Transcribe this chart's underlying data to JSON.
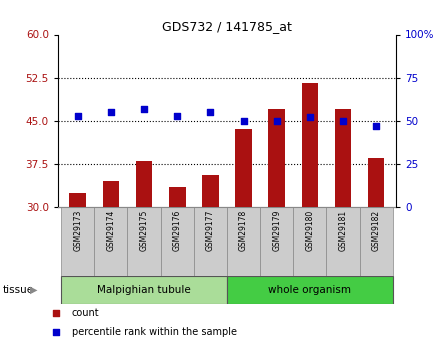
{
  "title": "GDS732 / 141785_at",
  "samples": [
    "GSM29173",
    "GSM29174",
    "GSM29175",
    "GSM29176",
    "GSM29177",
    "GSM29178",
    "GSM29179",
    "GSM29180",
    "GSM29181",
    "GSM29182"
  ],
  "count_values": [
    32.5,
    34.5,
    38.0,
    33.5,
    35.5,
    43.5,
    47.0,
    51.5,
    47.0,
    38.5
  ],
  "percentile_values": [
    53,
    55,
    57,
    53,
    55,
    50,
    50,
    52,
    50,
    47
  ],
  "bar_color": "#aa1111",
  "dot_color": "#0000cc",
  "bar_baseline": 30,
  "ylim_left": [
    30,
    60
  ],
  "ylim_right": [
    0,
    100
  ],
  "yticks_left": [
    30,
    37.5,
    45,
    52.5,
    60
  ],
  "yticks_right": [
    0,
    25,
    50,
    75,
    100
  ],
  "grid_lines": [
    37.5,
    45,
    52.5
  ],
  "tissue_groups": [
    {
      "label": "Malpighian tubule",
      "start": 0,
      "end": 5,
      "color": "#aadd99"
    },
    {
      "label": "whole organism",
      "start": 5,
      "end": 10,
      "color": "#44cc44"
    }
  ],
  "legend_items": [
    {
      "label": "count",
      "color": "#aa1111"
    },
    {
      "label": "percentile rank within the sample",
      "color": "#0000cc"
    }
  ],
  "tissue_label": "tissue",
  "background_color": "#ffffff",
  "tick_bg_color": "#cccccc",
  "plot_bg_color": "#ffffff"
}
